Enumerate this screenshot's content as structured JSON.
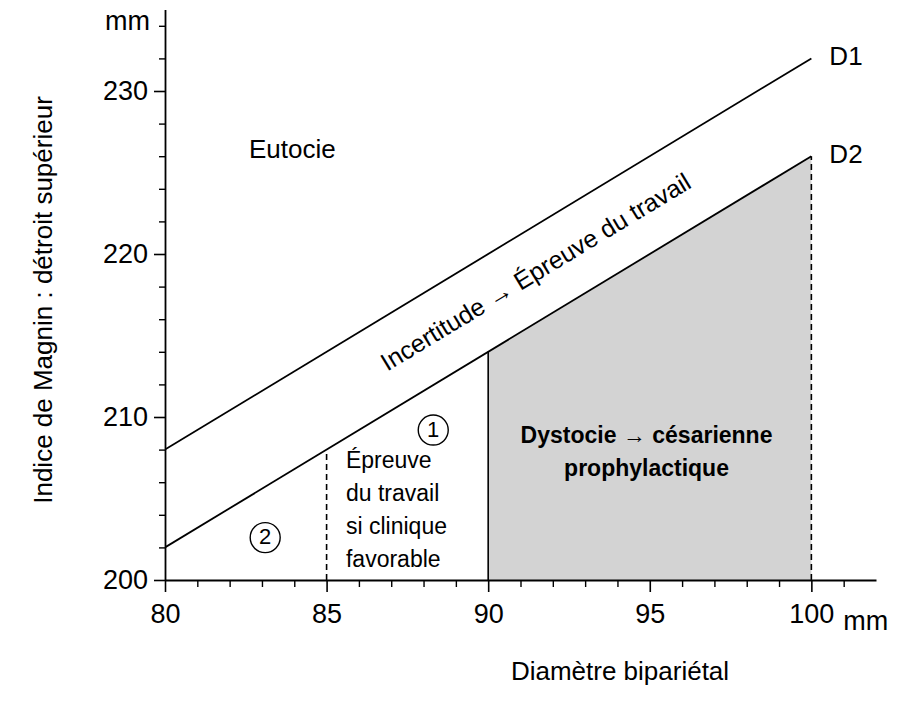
{
  "chart_data": {
    "type": "line",
    "x_label": "Diamètre bipariétal",
    "y_label": "Indice de Magnin : détroit supérieur",
    "x_unit": "mm",
    "y_unit": "mm",
    "xlim": [
      80,
      102
    ],
    "ylim": [
      200,
      235
    ],
    "xticks": [
      80,
      85,
      90,
      95,
      100
    ],
    "yticks": [
      200,
      210,
      220,
      230
    ],
    "xminor": [
      81,
      82,
      83,
      84,
      86,
      87,
      88,
      89,
      91,
      92,
      93,
      94,
      96,
      97,
      98,
      99,
      101
    ],
    "yminor": [
      202,
      204,
      206,
      208,
      212,
      214,
      216,
      218,
      222,
      224,
      226,
      228,
      232,
      234
    ],
    "series": [
      {
        "name": "D1",
        "color": "#000000",
        "x": [
          80,
          100
        ],
        "values": [
          208,
          232
        ]
      },
      {
        "name": "D2",
        "color": "#000000",
        "x": [
          80,
          100
        ],
        "values": [
          202,
          226
        ]
      }
    ],
    "regions": [
      {
        "x": [
          90,
          100
        ],
        "under": "D2",
        "color": "#d3d3d3"
      }
    ],
    "vlines": [
      {
        "x": 85,
        "to": "D2",
        "line_style": "dashed"
      },
      {
        "x": 90,
        "to": "D2",
        "line_style": "solid"
      },
      {
        "x": 100,
        "to": "D2",
        "line_style": "dashed"
      }
    ],
    "annotations": {
      "eutocie": "Eutocie",
      "band": "Incertitude → Épreuve du travail",
      "zone1": "1",
      "zone2": "2",
      "trial": [
        "Épreuve",
        "du travail",
        "si clinique",
        "favorable"
      ],
      "dystocia": [
        "Dystocie → césarienne",
        "prophylactique"
      ]
    }
  }
}
